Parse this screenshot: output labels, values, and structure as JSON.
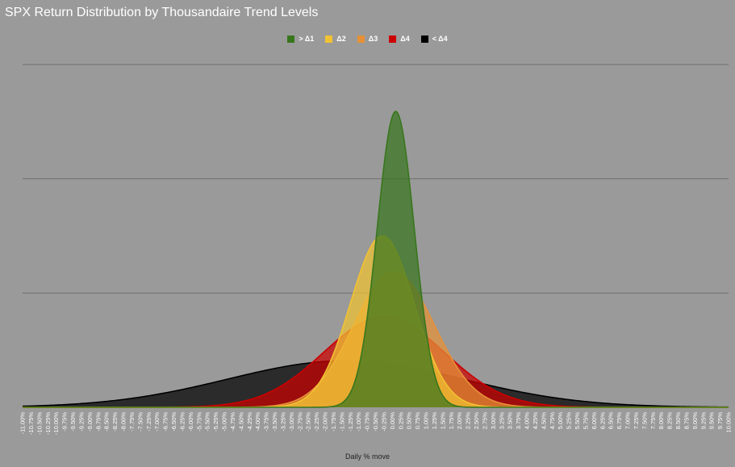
{
  "chart_data": {
    "type": "area",
    "title": "SPX Return Distribution by Thousandaire Trend Levels",
    "xlabel": "Daily % move",
    "ylabel": "",
    "grid": true,
    "legend_position": "top",
    "x_tick_labels": [
      "-11.00%",
      "-10.75%",
      "-10.50%",
      "-10.25%",
      "-10.00%",
      "-9.75%",
      "-9.50%",
      "-9.25%",
      "-9.00%",
      "-8.75%",
      "-8.50%",
      "-8.25%",
      "-8.00%",
      "-7.75%",
      "-7.50%",
      "-7.25%",
      "-7.00%",
      "-6.75%",
      "-6.50%",
      "-6.25%",
      "-6.00%",
      "-5.75%",
      "-5.50%",
      "-5.25%",
      "-5.00%",
      "-4.75%",
      "-4.50%",
      "-4.25%",
      "-4.00%",
      "-3.75%",
      "-3.50%",
      "-3.25%",
      "-3.00%",
      "-2.75%",
      "-2.50%",
      "-2.25%",
      "-2.00%",
      "-1.75%",
      "-1.50%",
      "-1.25%",
      "-1.00%",
      "-0.75%",
      "-0.50%",
      "-0.25%",
      "0.00%",
      "0.25%",
      "0.50%",
      "0.75%",
      "1.00%",
      "1.25%",
      "1.50%",
      "1.75%",
      "2.00%",
      "2.25%",
      "2.50%",
      "2.75%",
      "3.00%",
      "3.25%",
      "3.50%",
      "3.75%",
      "4.00%",
      "4.25%",
      "4.50%",
      "4.75%",
      "5.00%",
      "5.25%",
      "5.50%",
      "5.75%",
      "6.00%",
      "6.25%",
      "6.50%",
      "6.75%",
      "7.00%",
      "7.25%",
      "7.50%",
      "7.75%",
      "8.00%",
      "8.25%",
      "8.50%",
      "8.75%",
      "9.00%",
      "9.25%",
      "9.50%",
      "9.75%",
      "10.00%"
    ],
    "xlim": [
      -11,
      10
    ],
    "ylim": [
      0,
      0.84
    ],
    "gridlines_y": [
      0.28,
      0.56,
      0.84
    ],
    "series": [
      {
        "name": "< Δ4",
        "color": "#000000",
        "mean": -1.4,
        "sd": 3.5
      },
      {
        "name": "Δ4",
        "color": "#cc0000",
        "mean": -0.25,
        "sd": 1.8
      },
      {
        "name": "Δ3",
        "color": "#e69138",
        "mean": 0.05,
        "sd": 1.2
      },
      {
        "name": "Δ2",
        "color": "#f1c232",
        "mean": -0.3,
        "sd": 0.95
      },
      {
        "name": "> Δ1",
        "color": "#38761d",
        "mean": 0.1,
        "sd": 0.55
      }
    ]
  },
  "legend": [
    {
      "label": "> Δ1",
      "color": "#38761d"
    },
    {
      "label": "Δ2",
      "color": "#f1c232"
    },
    {
      "label": "Δ3",
      "color": "#e69138"
    },
    {
      "label": "Δ4",
      "color": "#cc0000"
    },
    {
      "label": "< Δ4",
      "color": "#000000"
    }
  ]
}
